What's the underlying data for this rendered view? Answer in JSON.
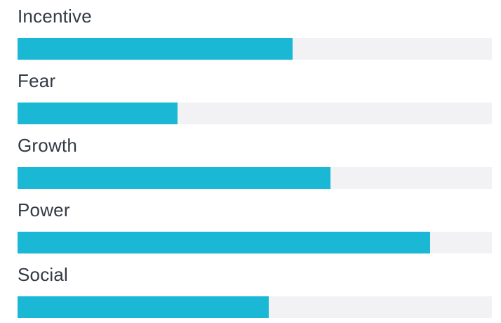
{
  "chart_data": {
    "type": "bar",
    "orientation": "horizontal",
    "categories": [
      "Incentive",
      "Fear",
      "Growth",
      "Power",
      "Social"
    ],
    "values": [
      58,
      33.7,
      66,
      87,
      53
    ],
    "xlim": [
      0,
      100
    ],
    "title": "",
    "xlabel": "",
    "ylabel": "",
    "grid": false,
    "legend": "none",
    "colors": {
      "bar": "#1ab8d5",
      "track": "#f2f2f4",
      "label": "#333a44"
    }
  }
}
